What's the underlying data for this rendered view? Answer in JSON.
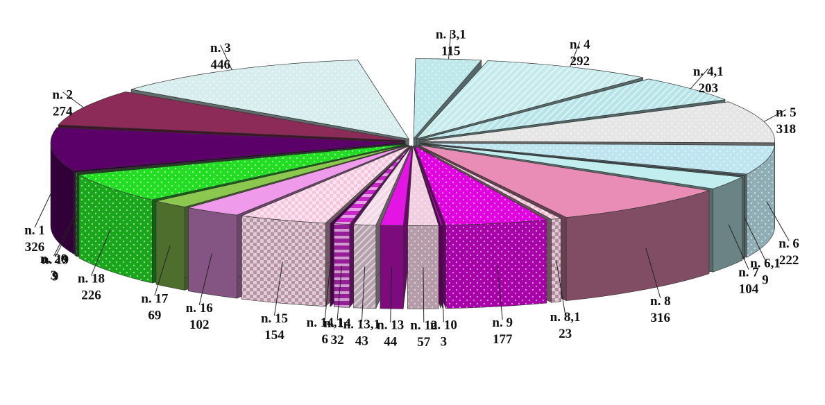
{
  "chart_data": {
    "type": "pie",
    "style": "3d-exploded",
    "title": "",
    "legend": "none",
    "slices": [
      {
        "name": "n. 3,1",
        "value": 115,
        "color": "#bfe8ea",
        "pattern": "dots"
      },
      {
        "name": "n. 4",
        "value": 292,
        "color": "#c4eaec",
        "pattern": "diag"
      },
      {
        "name": "n. 4,1",
        "value": 203,
        "color": "#b6e4e8",
        "pattern": "diag"
      },
      {
        "name": "n. 5",
        "value": 318,
        "color": "#e6e6e6",
        "pattern": "dots"
      },
      {
        "name": "n. 6",
        "value": 222,
        "color": "#bfe6f0",
        "pattern": "dots"
      },
      {
        "name": "n. 6,1",
        "value": 9,
        "color": "#a8dde2",
        "pattern": "none"
      },
      {
        "name": "n. 7",
        "value": 104,
        "color": "#c2eef0",
        "pattern": "none"
      },
      {
        "name": "n. 8",
        "value": 316,
        "color": "#e98cb6",
        "pattern": "none"
      },
      {
        "name": "n. 8,1",
        "value": 23,
        "color": "#f0b8d0",
        "pattern": "check"
      },
      {
        "name": "n. 9",
        "value": 177,
        "color": "#e000e0",
        "pattern": "dots"
      },
      {
        "name": "n. 10",
        "value": 3,
        "color": "#c000c0",
        "pattern": "none"
      },
      {
        "name": "n. 12",
        "value": 57,
        "color": "#f2cfe0",
        "pattern": "dots"
      },
      {
        "name": "n. 13",
        "value": 44,
        "color": "#e414e4",
        "pattern": "none"
      },
      {
        "name": "n. 13,1",
        "value": 43,
        "color": "#f3d8e8",
        "pattern": "diag"
      },
      {
        "name": "n. 14",
        "value": 32,
        "color": "#c828c8",
        "pattern": "hstripe"
      },
      {
        "name": "n. 14,1",
        "value": 6,
        "color": "#a000a8",
        "pattern": "none"
      },
      {
        "name": "n. 15",
        "value": 154,
        "color": "#f6c4dc",
        "pattern": "check"
      },
      {
        "name": "n. 16",
        "value": 102,
        "color": "#f09aec",
        "pattern": "none"
      },
      {
        "name": "n. 17",
        "value": 69,
        "color": "#8cc850",
        "pattern": "none"
      },
      {
        "name": "n. 18",
        "value": 226,
        "color": "#22dd22",
        "pattern": "dots"
      },
      {
        "name": "n. 19",
        "value": 9,
        "color": "#2ea02e",
        "pattern": "hstripe"
      },
      {
        "name": "n. 20",
        "value": 3,
        "color": "#1a8a1a",
        "pattern": "none"
      },
      {
        "name": "n. 1",
        "value": 326,
        "color": "#5a0068",
        "pattern": "none"
      },
      {
        "name": "n. 2",
        "value": 274,
        "color": "#8c2a58",
        "pattern": "none"
      },
      {
        "name": "n. 3",
        "value": 446,
        "color": "#d8eeee",
        "pattern": "dots"
      }
    ]
  }
}
